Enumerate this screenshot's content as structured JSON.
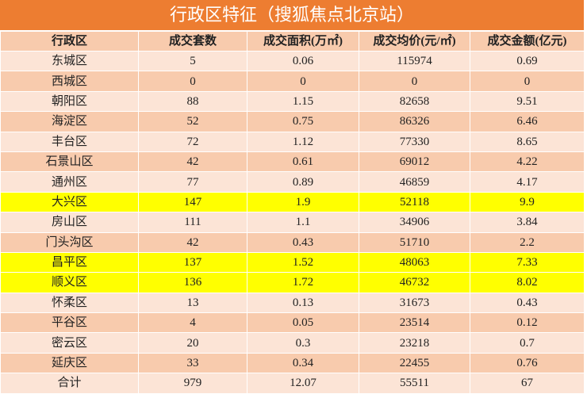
{
  "title": "行政区特征（搜狐焦点北京站）",
  "colors": {
    "title_bg": "#ed7d31",
    "header_bg": "#f8cbad",
    "row_light": "#fce4d6",
    "row_dark": "#f8cbad",
    "highlight": "#ffff00"
  },
  "columns": [
    "行政区",
    "成交套数",
    "成交面积(万㎡)",
    "成交均价(元/㎡)",
    "成交金额(亿元)"
  ],
  "rows": [
    {
      "cells": [
        "东城区",
        "5",
        "0.06",
        "115974",
        "0.69"
      ],
      "highlight": false
    },
    {
      "cells": [
        "西城区",
        "0",
        "0",
        "0",
        "0"
      ],
      "highlight": false
    },
    {
      "cells": [
        "朝阳区",
        "88",
        "1.15",
        "82658",
        "9.51"
      ],
      "highlight": false
    },
    {
      "cells": [
        "海淀区",
        "52",
        "0.75",
        "86326",
        "6.46"
      ],
      "highlight": false
    },
    {
      "cells": [
        "丰台区",
        "72",
        "1.12",
        "77330",
        "8.65"
      ],
      "highlight": false
    },
    {
      "cells": [
        "石景山区",
        "42",
        "0.61",
        "69012",
        "4.22"
      ],
      "highlight": false
    },
    {
      "cells": [
        "通州区",
        "77",
        "0.89",
        "46859",
        "4.17"
      ],
      "highlight": false
    },
    {
      "cells": [
        "大兴区",
        "147",
        "1.9",
        "52118",
        "9.9"
      ],
      "highlight": true
    },
    {
      "cells": [
        "房山区",
        "111",
        "1.1",
        "34906",
        "3.84"
      ],
      "highlight": false
    },
    {
      "cells": [
        "门头沟区",
        "42",
        "0.43",
        "51710",
        "2.2"
      ],
      "highlight": false
    },
    {
      "cells": [
        "昌平区",
        "137",
        "1.52",
        "48063",
        "7.33"
      ],
      "highlight": true
    },
    {
      "cells": [
        "顺义区",
        "136",
        "1.72",
        "46732",
        "8.02"
      ],
      "highlight": true
    },
    {
      "cells": [
        "怀柔区",
        "13",
        "0.13",
        "31673",
        "0.43"
      ],
      "highlight": false
    },
    {
      "cells": [
        "平谷区",
        "4",
        "0.05",
        "23514",
        "0.12"
      ],
      "highlight": false
    },
    {
      "cells": [
        "密云区",
        "20",
        "0.3",
        "23218",
        "0.7"
      ],
      "highlight": false
    },
    {
      "cells": [
        "延庆区",
        "33",
        "0.34",
        "22455",
        "0.76"
      ],
      "highlight": false
    },
    {
      "cells": [
        "合计",
        "979",
        "12.07",
        "55511",
        "67"
      ],
      "highlight": false
    }
  ]
}
